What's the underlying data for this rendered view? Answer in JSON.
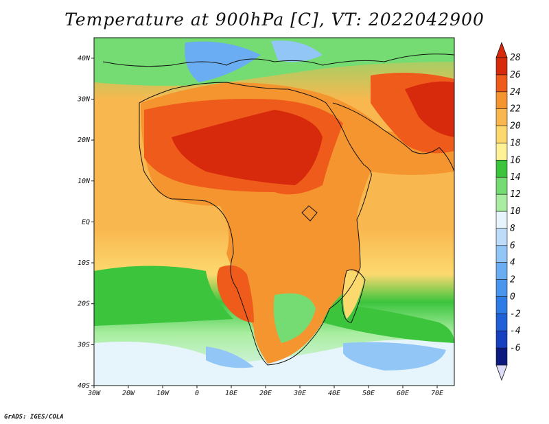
{
  "title": "Temperature at 900hPa [C], VT: 2022042900",
  "credit": "GrADS: IGES/COLA",
  "lon_labels": [
    "30W",
    "20W",
    "10W",
    "0",
    "10E",
    "20E",
    "30E",
    "40E",
    "50E",
    "60E",
    "70E"
  ],
  "lat_labels": [
    "40N",
    "30N",
    "20N",
    "10N",
    "EQ",
    "10S",
    "20S",
    "30S",
    "40S"
  ],
  "chart_data": {
    "type": "heatmap",
    "title": "Temperature at 900hPa [C], VT: 2022042900",
    "variable": "Temperature at 900hPa",
    "units": "C",
    "valid_time": "2022042900",
    "lon_range": [
      -30,
      75
    ],
    "lat_range": [
      -40,
      45
    ],
    "colorbar": {
      "levels": [
        -6,
        -4,
        -2,
        0,
        2,
        4,
        6,
        8,
        10,
        12,
        14,
        16,
        18,
        20,
        22,
        24,
        26,
        28
      ],
      "colors": [
        "#0c1a80",
        "#1640c0",
        "#1f5fd8",
        "#2c7be6",
        "#4a96ee",
        "#6aadf3",
        "#92c6f7",
        "#bcdcf9",
        "#e6f5fb",
        "#a9eea0",
        "#74dc72",
        "#3cc43d",
        "#fff296",
        "#fcd96f",
        "#f9b84f",
        "#f5952f",
        "#ef5b1a",
        "#d72a0c"
      ],
      "labels": [
        "-6",
        "-4",
        "-2",
        "0",
        "2",
        "4",
        "6",
        "8",
        "10",
        "12",
        "14",
        "16",
        "18",
        "20",
        "22",
        "24",
        "26",
        "28"
      ]
    }
  }
}
